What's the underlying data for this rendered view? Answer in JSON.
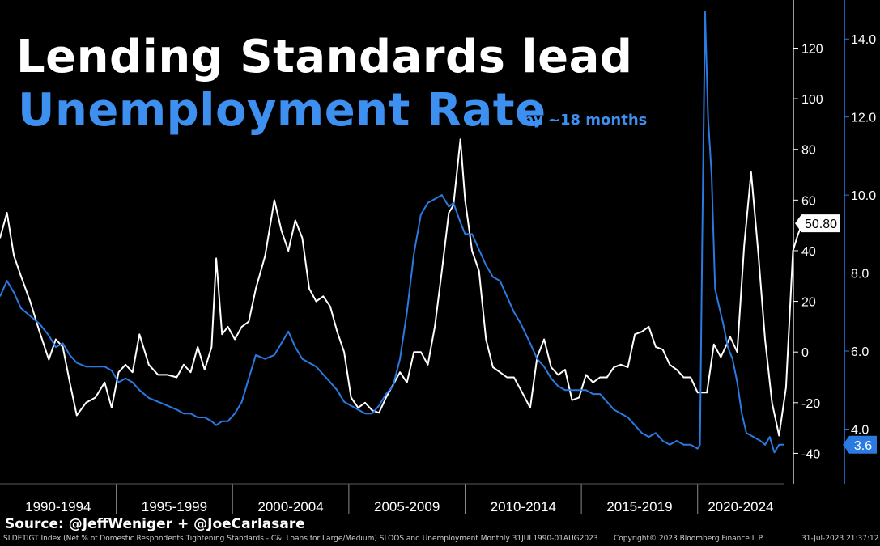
{
  "title": {
    "line1": "Lending Standards lead",
    "line2": "Unemployment Rate",
    "subtitle": "by ~18 months"
  },
  "source": "Source: @JeffWeniger + @JoeCarlasare",
  "footer": {
    "left": "SLDETIGT Index (Net % of Domestic Respondents Tightening Standards - C&I Loans for Large/Medium) SLOOS and Unemployment  Monthly 31JUL1990-01AUG2023",
    "middle": "Copyright© 2023 Bloomberg Finance L.P.",
    "right": "31-Jul-2023 21:37:12"
  },
  "colors": {
    "background": "#000000",
    "lending_line": "#ffffff",
    "unemployment_line": "#2a7ae2",
    "title_accent": "#3d8ff0"
  },
  "chart_data": {
    "type": "line",
    "x_range": [
      1990.0,
      2023.7
    ],
    "period_labels": [
      "1990-1994",
      "1995-1999",
      "2000-2004",
      "2005-2009",
      "2010-2014",
      "2015-2019",
      "2020-2024"
    ],
    "y_left": {
      "ticks": [
        -40,
        -20,
        0,
        20,
        40,
        60,
        80,
        100,
        120
      ],
      "range": [
        -52,
        139
      ]
    },
    "y_right": {
      "ticks": [
        "4.0",
        "6.0",
        "8.0",
        "10.0",
        "12.0",
        "14.0"
      ],
      "range": [
        2.6,
        15.0
      ]
    },
    "grid": false,
    "series": [
      {
        "axis": "left",
        "last_value_label": "50.80",
        "points": [
          [
            1990.0,
            45
          ],
          [
            1990.3,
            55
          ],
          [
            1990.6,
            38
          ],
          [
            1990.9,
            30
          ],
          [
            1991.3,
            20
          ],
          [
            1991.7,
            8
          ],
          [
            1992.1,
            -3
          ],
          [
            1992.4,
            5
          ],
          [
            1992.7,
            2
          ],
          [
            1993.0,
            -12
          ],
          [
            1993.3,
            -25
          ],
          [
            1993.7,
            -20
          ],
          [
            1994.1,
            -18
          ],
          [
            1994.5,
            -12
          ],
          [
            1994.8,
            -22
          ],
          [
            1995.1,
            -8
          ],
          [
            1995.4,
            -5
          ],
          [
            1995.7,
            -8
          ],
          [
            1996.0,
            7
          ],
          [
            1996.4,
            -5
          ],
          [
            1996.8,
            -9
          ],
          [
            1997.2,
            -9
          ],
          [
            1997.6,
            -10
          ],
          [
            1997.9,
            -5
          ],
          [
            1998.2,
            -8
          ],
          [
            1998.5,
            2
          ],
          [
            1998.8,
            -7
          ],
          [
            1999.1,
            2
          ],
          [
            1999.3,
            37
          ],
          [
            1999.55,
            7
          ],
          [
            1999.8,
            10
          ],
          [
            2000.1,
            5
          ],
          [
            2000.4,
            10
          ],
          [
            2000.7,
            12
          ],
          [
            2001.0,
            25
          ],
          [
            2001.4,
            38
          ],
          [
            2001.8,
            60
          ],
          [
            2002.1,
            48
          ],
          [
            2002.4,
            40
          ],
          [
            2002.7,
            52
          ],
          [
            2003.0,
            45
          ],
          [
            2003.3,
            25
          ],
          [
            2003.6,
            20
          ],
          [
            2003.9,
            22
          ],
          [
            2004.2,
            18
          ],
          [
            2004.5,
            8
          ],
          [
            2004.8,
            0
          ],
          [
            2005.1,
            -18
          ],
          [
            2005.4,
            -22
          ],
          [
            2005.7,
            -20
          ],
          [
            2006.0,
            -23
          ],
          [
            2006.3,
            -24
          ],
          [
            2006.6,
            -18
          ],
          [
            2006.9,
            -13
          ],
          [
            2007.2,
            -8
          ],
          [
            2007.5,
            -12
          ],
          [
            2007.8,
            0
          ],
          [
            2008.1,
            0
          ],
          [
            2008.4,
            -5
          ],
          [
            2008.7,
            10
          ],
          [
            2009.0,
            32
          ],
          [
            2009.3,
            55
          ],
          [
            2009.5,
            58
          ],
          [
            2009.8,
            84
          ],
          [
            2010.0,
            60
          ],
          [
            2010.3,
            40
          ],
          [
            2010.6,
            32
          ],
          [
            2010.9,
            5
          ],
          [
            2011.2,
            -6
          ],
          [
            2011.5,
            -8
          ],
          [
            2011.8,
            -10
          ],
          [
            2012.1,
            -10
          ],
          [
            2012.4,
            -15
          ],
          [
            2012.8,
            -22
          ],
          [
            2013.1,
            -2
          ],
          [
            2013.4,
            5
          ],
          [
            2013.7,
            -6
          ],
          [
            2014.0,
            -9
          ],
          [
            2014.3,
            -7
          ],
          [
            2014.6,
            -19
          ],
          [
            2014.9,
            -18
          ],
          [
            2015.2,
            -9
          ],
          [
            2015.5,
            -12
          ],
          [
            2015.8,
            -10
          ],
          [
            2016.1,
            -10
          ],
          [
            2016.4,
            -6
          ],
          [
            2016.7,
            -5
          ],
          [
            2017.0,
            -6
          ],
          [
            2017.3,
            7
          ],
          [
            2017.6,
            8
          ],
          [
            2017.9,
            10
          ],
          [
            2018.2,
            2
          ],
          [
            2018.5,
            1
          ],
          [
            2018.8,
            -5
          ],
          [
            2019.1,
            -7
          ],
          [
            2019.4,
            -10
          ],
          [
            2019.7,
            -10
          ],
          [
            2020.0,
            -16
          ],
          [
            2020.4,
            -16
          ],
          [
            2020.7,
            3
          ],
          [
            2021.0,
            -2
          ],
          [
            2021.4,
            6
          ],
          [
            2021.7,
            0
          ],
          [
            2022.0,
            42
          ],
          [
            2022.3,
            71
          ],
          [
            2022.6,
            40
          ],
          [
            2022.9,
            5
          ],
          [
            2023.2,
            -20
          ],
          [
            2023.5,
            -33
          ],
          [
            2023.8,
            -14
          ],
          [
            2024.1,
            40
          ],
          [
            2024.3,
            46
          ],
          [
            2024.5,
            50.8
          ]
        ]
      },
      {
        "axis": "right",
        "last_value_label": "3.6",
        "points": [
          [
            1990.0,
            7.4
          ],
          [
            1990.3,
            7.8
          ],
          [
            1990.6,
            7.5
          ],
          [
            1990.9,
            7.1
          ],
          [
            1991.3,
            6.9
          ],
          [
            1991.7,
            6.7
          ],
          [
            1992.1,
            6.4
          ],
          [
            1992.4,
            6.1
          ],
          [
            1992.7,
            6.2
          ],
          [
            1993.0,
            5.9
          ],
          [
            1993.3,
            5.7
          ],
          [
            1993.7,
            5.6
          ],
          [
            1994.1,
            5.6
          ],
          [
            1994.5,
            5.6
          ],
          [
            1994.8,
            5.5
          ],
          [
            1995.1,
            5.2
          ],
          [
            1995.4,
            5.3
          ],
          [
            1995.7,
            5.2
          ],
          [
            1996.0,
            5.0
          ],
          [
            1996.4,
            4.8
          ],
          [
            1996.8,
            4.7
          ],
          [
            1997.2,
            4.6
          ],
          [
            1997.6,
            4.5
          ],
          [
            1997.9,
            4.4
          ],
          [
            1998.2,
            4.4
          ],
          [
            1998.5,
            4.3
          ],
          [
            1998.8,
            4.3
          ],
          [
            1999.1,
            4.2
          ],
          [
            1999.3,
            4.1
          ],
          [
            1999.55,
            4.2
          ],
          [
            1999.8,
            4.2
          ],
          [
            2000.1,
            4.4
          ],
          [
            2000.4,
            4.7
          ],
          [
            2000.7,
            5.3
          ],
          [
            2001.0,
            5.9
          ],
          [
            2001.4,
            5.8
          ],
          [
            2001.8,
            5.9
          ],
          [
            2002.1,
            6.2
          ],
          [
            2002.4,
            6.5
          ],
          [
            2002.7,
            6.1
          ],
          [
            2003.0,
            5.8
          ],
          [
            2003.3,
            5.7
          ],
          [
            2003.6,
            5.6
          ],
          [
            2003.9,
            5.4
          ],
          [
            2004.2,
            5.2
          ],
          [
            2004.5,
            5.0
          ],
          [
            2004.8,
            4.7
          ],
          [
            2005.1,
            4.6
          ],
          [
            2005.4,
            4.5
          ],
          [
            2005.7,
            4.4
          ],
          [
            2006.0,
            4.4
          ],
          [
            2006.3,
            4.6
          ],
          [
            2006.6,
            4.9
          ],
          [
            2006.9,
            5.1
          ],
          [
            2007.2,
            5.8
          ],
          [
            2007.5,
            7.0
          ],
          [
            2007.8,
            8.5
          ],
          [
            2008.1,
            9.5
          ],
          [
            2008.4,
            9.8
          ],
          [
            2008.7,
            9.9
          ],
          [
            2009.0,
            10.0
          ],
          [
            2009.3,
            9.7
          ],
          [
            2009.5,
            9.8
          ],
          [
            2009.8,
            9.3
          ],
          [
            2010.0,
            9.0
          ],
          [
            2010.3,
            9.0
          ],
          [
            2010.6,
            8.6
          ],
          [
            2010.9,
            8.2
          ],
          [
            2011.2,
            7.9
          ],
          [
            2011.5,
            7.8
          ],
          [
            2011.8,
            7.4
          ],
          [
            2012.1,
            7.0
          ],
          [
            2012.4,
            6.7
          ],
          [
            2012.8,
            6.2
          ],
          [
            2013.1,
            5.8
          ],
          [
            2013.4,
            5.6
          ],
          [
            2013.7,
            5.3
          ],
          [
            2014.0,
            5.1
          ],
          [
            2014.3,
            5.0
          ],
          [
            2014.6,
            5.0
          ],
          [
            2014.9,
            5.0
          ],
          [
            2015.2,
            5.0
          ],
          [
            2015.5,
            4.9
          ],
          [
            2015.8,
            4.9
          ],
          [
            2016.1,
            4.7
          ],
          [
            2016.4,
            4.5
          ],
          [
            2016.7,
            4.4
          ],
          [
            2017.0,
            4.3
          ],
          [
            2017.3,
            4.1
          ],
          [
            2017.6,
            3.9
          ],
          [
            2017.9,
            3.8
          ],
          [
            2018.2,
            3.9
          ],
          [
            2018.5,
            3.7
          ],
          [
            2018.8,
            3.6
          ],
          [
            2019.1,
            3.7
          ],
          [
            2019.4,
            3.6
          ],
          [
            2019.7,
            3.6
          ],
          [
            2020.0,
            3.5
          ],
          [
            2020.1,
            3.6
          ],
          [
            2020.2,
            9.0
          ],
          [
            2020.32,
            14.7
          ],
          [
            2020.45,
            12.0
          ],
          [
            2020.6,
            10.5
          ],
          [
            2020.75,
            7.6
          ],
          [
            2020.9,
            7.2
          ],
          [
            2021.1,
            6.7
          ],
          [
            2021.3,
            6.1
          ],
          [
            2021.5,
            5.8
          ],
          [
            2021.7,
            5.2
          ],
          [
            2021.9,
            4.4
          ],
          [
            2022.1,
            3.9
          ],
          [
            2022.4,
            3.8
          ],
          [
            2022.7,
            3.7
          ],
          [
            2022.9,
            3.6
          ],
          [
            2023.1,
            3.8
          ],
          [
            2023.3,
            3.4
          ],
          [
            2023.5,
            3.6
          ],
          [
            2023.7,
            3.6
          ]
        ]
      }
    ]
  }
}
